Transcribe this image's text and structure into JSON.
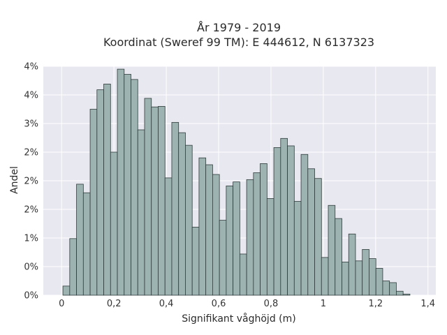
{
  "chart_data": {
    "type": "bar",
    "title": "År 1979 - 2019",
    "subtitle": "Koordinat (Sweref 99 TM): E 444612, N 6137323",
    "xlabel": "Signifikant våghöjd (m)",
    "ylabel": "Andel",
    "xlim": [
      -0.07,
      1.43
    ],
    "ylim": [
      0,
      4.0
    ],
    "grid": true,
    "bin_width": 0.026,
    "x_ticks": [
      {
        "value": 0,
        "label": "0"
      },
      {
        "value": 0.2,
        "label": "0,2"
      },
      {
        "value": 0.4,
        "label": "0,4"
      },
      {
        "value": 0.6,
        "label": "0,6"
      },
      {
        "value": 0.8,
        "label": "0,8"
      },
      {
        "value": 1.0,
        "label": "1"
      },
      {
        "value": 1.2,
        "label": "1,2"
      },
      {
        "value": 1.4,
        "label": "1,4"
      }
    ],
    "y_ticks": [
      {
        "value": 0.0,
        "label": "0%"
      },
      {
        "value": 0.5,
        "label": "0%"
      },
      {
        "value": 1.0,
        "label": "1%"
      },
      {
        "value": 1.5,
        "label": "2%"
      },
      {
        "value": 2.0,
        "label": "2%"
      },
      {
        "value": 2.5,
        "label": "2%"
      },
      {
        "value": 3.0,
        "label": "3%"
      },
      {
        "value": 3.5,
        "label": "4%"
      },
      {
        "value": 4.0,
        "label": "4%"
      }
    ],
    "bin_starts": [
      0.005,
      0.031,
      0.057,
      0.083,
      0.109,
      0.135,
      0.161,
      0.187,
      0.213,
      0.239,
      0.265,
      0.291,
      0.317,
      0.343,
      0.369,
      0.395,
      0.421,
      0.447,
      0.473,
      0.499,
      0.525,
      0.551,
      0.577,
      0.603,
      0.629,
      0.655,
      0.681,
      0.707,
      0.733,
      0.759,
      0.785,
      0.811,
      0.837,
      0.863,
      0.889,
      0.915,
      0.941,
      0.967,
      0.993,
      1.019,
      1.045,
      1.071,
      1.097,
      1.123,
      1.149,
      1.175,
      1.201,
      1.227,
      1.253,
      1.279,
      1.305,
      1.331,
      1.357
    ],
    "values": [
      0.16,
      0.99,
      1.94,
      1.79,
      3.25,
      3.59,
      3.69,
      2.5,
      3.95,
      3.86,
      3.77,
      2.89,
      3.44,
      3.29,
      3.3,
      2.05,
      3.02,
      2.84,
      2.62,
      1.19,
      2.4,
      2.28,
      2.11,
      1.31,
      1.91,
      1.98,
      0.72,
      2.02,
      2.14,
      2.3,
      1.69,
      2.58,
      2.74,
      2.61,
      1.64,
      2.46,
      2.21,
      2.04,
      0.66,
      1.57,
      1.34,
      0.58,
      1.07,
      0.6,
      0.8,
      0.64,
      0.47,
      0.25,
      0.22,
      0.07,
      0.02,
      0.0,
      0.0
    ]
  }
}
